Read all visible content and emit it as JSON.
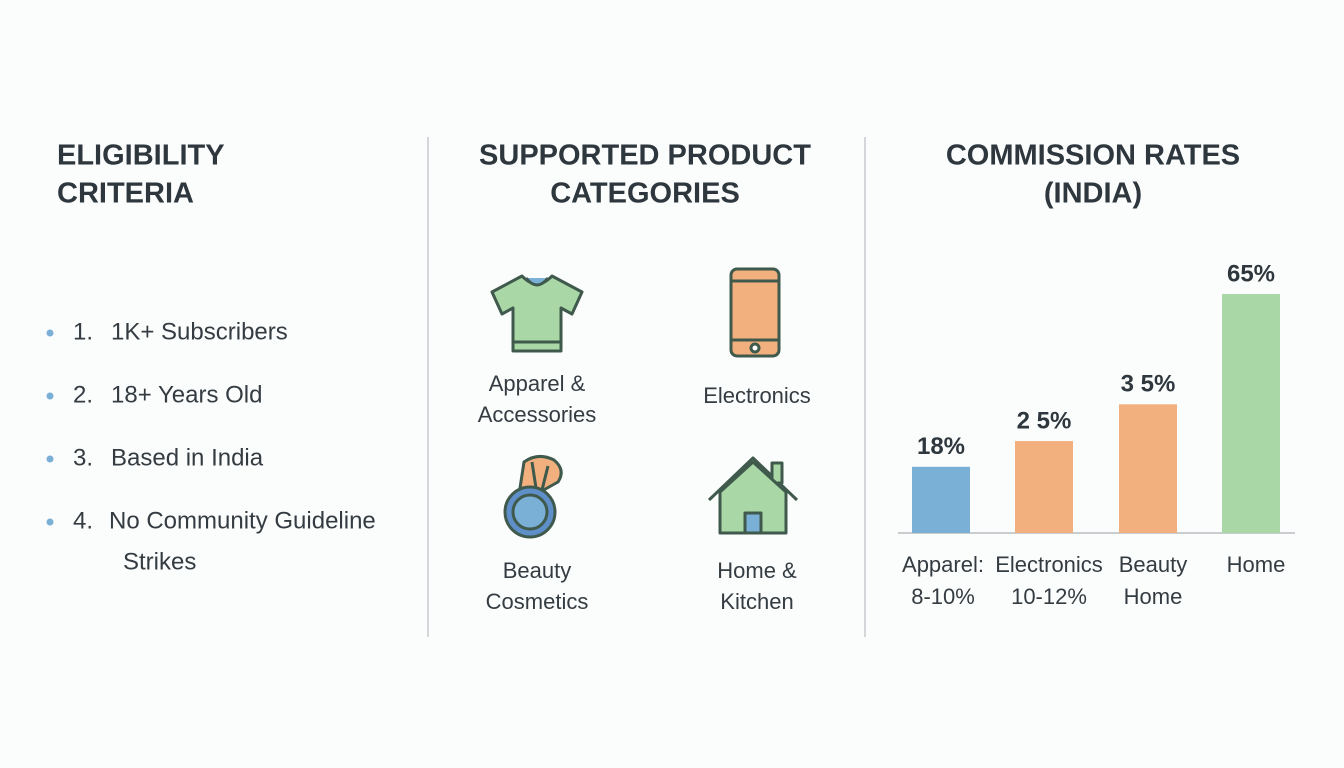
{
  "eligibility": {
    "title": [
      "ELIGIBILITY",
      "CRITERIA"
    ],
    "items": [
      {
        "number": "1.",
        "lines": [
          "1K+ Subscribers"
        ]
      },
      {
        "number": "2.",
        "lines": [
          "18+ Years Old"
        ]
      },
      {
        "number": "3.",
        "lines": [
          "Based in India"
        ]
      },
      {
        "number": "4.",
        "lines": [
          "No Community Guideline",
          "Strikes"
        ]
      }
    ]
  },
  "products": {
    "title": [
      "SUPPORTED PRODUCT",
      "CATEGORIES"
    ],
    "items": [
      {
        "lines": [
          "Apparel &",
          "Accessories"
        ]
      },
      {
        "lines": [
          "Electronics"
        ]
      },
      {
        "lines": [
          "Beauty",
          "Cosmetics"
        ]
      },
      {
        "lines": [
          "Home &",
          "Kitchen"
        ]
      }
    ]
  },
  "chart_data": {
    "type": "bar",
    "title": [
      "COMMISSION RATES",
      "(INDIA)"
    ],
    "categories": [
      [
        "Apparel:",
        "8-10%"
      ],
      [
        "Electronics",
        "10-12%"
      ],
      [
        "Beauty",
        "Home"
      ],
      [
        "Home"
      ]
    ],
    "values": [
      18,
      25,
      35,
      65
    ],
    "value_labels": [
      "18%",
      "2 5%",
      "3 5%",
      "65%"
    ],
    "colors": [
      "#7aafd6",
      "#f3b07f",
      "#f3b07f",
      "#a9d8a6"
    ]
  }
}
